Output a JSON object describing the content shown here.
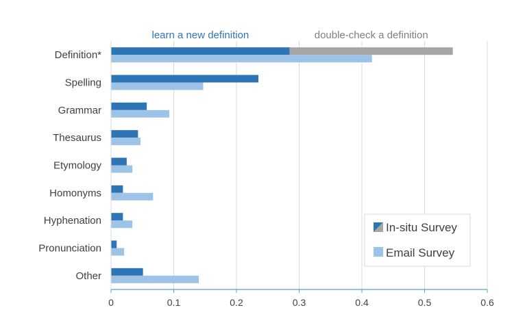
{
  "chart_data": {
    "type": "bar",
    "orientation": "horizontal",
    "categories": [
      "Definition*",
      "Spelling",
      "Grammar",
      "Thesaurus",
      "Etymology",
      "Homonyms",
      "Hyphenation",
      "Pronunciation",
      "Other"
    ],
    "series": [
      {
        "name": "In-situ Survey",
        "values": [
          0.545,
          0.235,
          0.057,
          0.043,
          0.025,
          0.019,
          0.019,
          0.009,
          0.051
        ],
        "color": "#2e75b6",
        "breakdown_first_category": [
          {
            "label": "learn a new definition",
            "value": 0.285,
            "color": "#2e75b6"
          },
          {
            "label": "double-check a definition",
            "value": 0.26,
            "color": "#a6a6a6"
          }
        ]
      },
      {
        "name": "Email Survey",
        "values": [
          0.416,
          0.147,
          0.093,
          0.047,
          0.034,
          0.067,
          0.034,
          0.021,
          0.14
        ],
        "color": "#9dc3e6"
      }
    ],
    "xlim": [
      0,
      0.6
    ],
    "xticks": [
      "0",
      "0.1",
      "0.2",
      "0.3",
      "0.4",
      "0.5",
      "0.6"
    ],
    "grid": true,
    "legend_position": "bottom-right",
    "annotations": {
      "learn": {
        "text": "learn a new definition",
        "color": "#2e75b6"
      },
      "double": {
        "text": "double-check a definition",
        "color": "#7f7f7f"
      }
    }
  },
  "legend": {
    "in_situ_label": "In-situ Survey",
    "email_label": "Email Survey"
  }
}
